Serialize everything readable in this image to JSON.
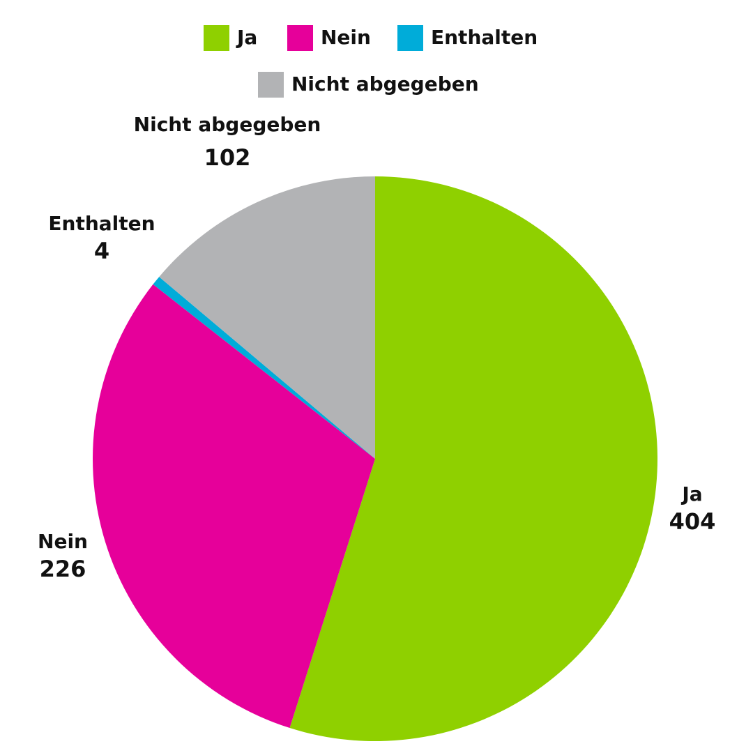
{
  "chart_data": {
    "type": "pie",
    "categories": [
      "Ja",
      "Nein",
      "Enthalten",
      "Nicht abgegeben"
    ],
    "values": [
      404,
      226,
      4,
      102
    ],
    "colors": [
      "#8fd000",
      "#e6009a",
      "#00acd9",
      "#b2b3b5"
    ],
    "legend": "top"
  }
}
